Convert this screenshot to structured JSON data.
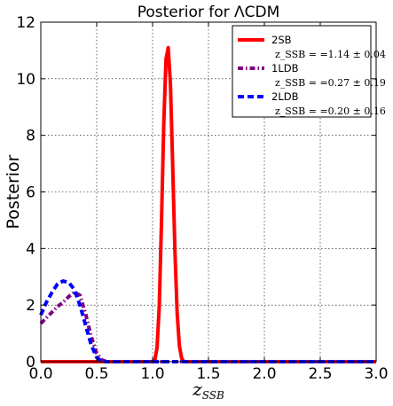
{
  "chart_data": {
    "type": "line",
    "title": "Posterior for ΛCDM",
    "xlabel": "z_SSB",
    "xlabel_main": "z",
    "xlabel_sub": "SSB",
    "ylabel": "Posterior",
    "xlim": [
      0.0,
      3.0
    ],
    "ylim": [
      0,
      12
    ],
    "xticks": [
      "0.0",
      "0.5",
      "1.0",
      "1.5",
      "2.0",
      "2.5",
      "3.0"
    ],
    "yticks": [
      "0",
      "2",
      "4",
      "6",
      "8",
      "10",
      "12"
    ],
    "grid": true,
    "legend_position": "top-right",
    "series": [
      {
        "name": "2SB",
        "stat": "z_SSB = =1.14 ± 0.04",
        "color": "#ff0000",
        "style": "solid",
        "x": [
          0.0,
          0.5,
          1.0,
          1.02,
          1.04,
          1.06,
          1.08,
          1.1,
          1.12,
          1.14,
          1.16,
          1.18,
          1.2,
          1.22,
          1.24,
          1.26,
          1.28,
          1.5,
          2.0,
          2.5,
          3.0
        ],
        "y": [
          0,
          0,
          0,
          0.05,
          0.5,
          2.0,
          5.0,
          8.4,
          10.7,
          11.1,
          9.8,
          6.9,
          3.9,
          1.7,
          0.55,
          0.12,
          0,
          0,
          0,
          0,
          0
        ]
      },
      {
        "name": "1LDB",
        "stat": "z_SSB = =0.27 ± 0.19",
        "color": "#800080",
        "style": "dashdot",
        "x": [
          0.0,
          0.05,
          0.1,
          0.15,
          0.2,
          0.25,
          0.3,
          0.35,
          0.4,
          0.45,
          0.5,
          0.55,
          0.6,
          1.0,
          1.5,
          2.0,
          2.5,
          3.0
        ],
        "y": [
          1.35,
          1.55,
          1.75,
          1.95,
          2.1,
          2.3,
          2.45,
          2.35,
          1.7,
          0.9,
          0.3,
          0.05,
          0,
          0,
          0,
          0,
          0,
          0
        ]
      },
      {
        "name": "2LDB",
        "stat": "z_SSB = =0.20 ± 0.16",
        "color": "#0000ff",
        "style": "dashed",
        "x": [
          0.0,
          0.05,
          0.1,
          0.15,
          0.2,
          0.25,
          0.3,
          0.35,
          0.4,
          0.45,
          0.5,
          0.55,
          1.0,
          1.5,
          2.0,
          2.5,
          3.0
        ],
        "y": [
          1.65,
          2.1,
          2.45,
          2.75,
          2.85,
          2.8,
          2.55,
          2.0,
          1.3,
          0.6,
          0.15,
          0,
          0,
          0,
          0,
          0,
          0
        ]
      }
    ]
  }
}
